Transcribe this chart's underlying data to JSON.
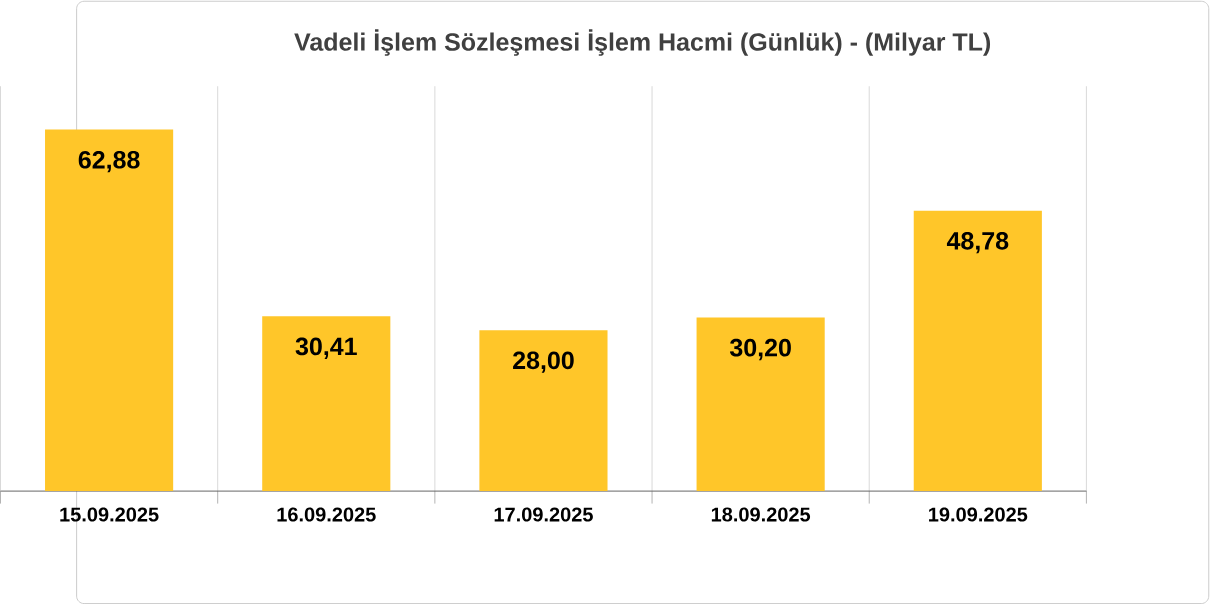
{
  "chart_data": {
    "type": "bar",
    "title": "Vadeli İşlem Sözleşmesi İşlem Hacmi (Günlük) - (Milyar TL)",
    "categories": [
      "15.09.2025",
      "16.09.2025",
      "17.09.2025",
      "18.09.2025",
      "19.09.2025"
    ],
    "values": [
      62.88,
      30.41,
      28.0,
      30.2,
      48.78
    ],
    "value_labels": [
      "62,88",
      "30,41",
      "28,00",
      "30,20",
      "48,78"
    ],
    "color": "#ffc629",
    "grid": "x"
  }
}
